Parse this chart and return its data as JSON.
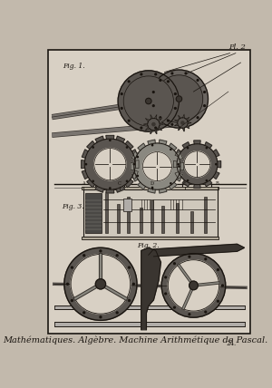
{
  "bg_color": "#c2b9ac",
  "paper_color": "#d8d0c4",
  "border_color": "#1a1510",
  "line_color": "#1a1510",
  "dark_fill": "#3a3530",
  "mid_fill": "#5a5550",
  "light_fill": "#8a8880",
  "very_light_fill": "#b0aca8",
  "title_text": "Mathématiques. Algèbre. Machine Arithmétique de Pascal.",
  "plate_text": "Pl. 2",
  "fig1_label": "Fig. 1.",
  "fig2_label": "Fig. 3.",
  "fig3_label": "Fig. 2.",
  "title_fontsize": 7.0,
  "plate_fontsize": 6.0,
  "label_fontsize": 5.5
}
